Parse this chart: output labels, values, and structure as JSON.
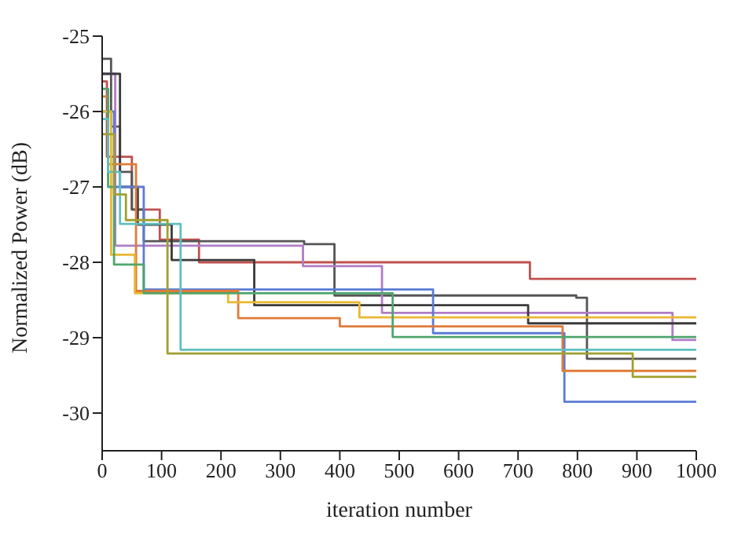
{
  "chart_data": {
    "type": "step",
    "xlabel": "iteration number",
    "ylabel": "Normalized Power (dB)",
    "xlim": [
      0,
      1000
    ],
    "xticks": [
      0,
      100,
      200,
      300,
      400,
      500,
      600,
      700,
      800,
      900,
      1000
    ],
    "ylim": [
      -30.5,
      -25
    ],
    "yticks": [
      -30,
      -29,
      -28,
      -27,
      -26,
      -25
    ],
    "grid": false,
    "legend": false,
    "marker": "none",
    "line_style": "solid",
    "series": [
      {
        "color": "#c0504d",
        "x": [
          0,
          8,
          50,
          97,
          163,
          720,
          1000
        ],
        "values": [
          -25.6,
          -26.6,
          -27.3,
          -27.7,
          -28.0,
          -28.22,
          -28.22
        ]
      },
      {
        "color": "#555555",
        "x": [
          0,
          15,
          30,
          50,
          70,
          340,
          391,
          798,
          816,
          1000
        ],
        "values": [
          -25.3,
          -26.2,
          -26.8,
          -27.3,
          -27.72,
          -27.76,
          -28.44,
          -28.47,
          -29.28,
          -29.28
        ]
      },
      {
        "color": "#b07cc6",
        "x": [
          0,
          22,
          338,
          471,
          960,
          1000
        ],
        "values": [
          -25.5,
          -27.78,
          -28.05,
          -28.67,
          -29.03,
          -29.03
        ]
      },
      {
        "color": "#3a3a3a",
        "x": [
          0,
          30,
          60,
          117,
          256,
          717,
          1000
        ],
        "values": [
          -25.5,
          -27.0,
          -27.5,
          -27.97,
          -28.57,
          -28.81,
          -28.81
        ]
      },
      {
        "color": "#5b7bd5",
        "x": [
          0,
          20,
          70,
          557,
          778,
          1000
        ],
        "values": [
          -26.0,
          -27.0,
          -28.36,
          -28.94,
          -29.85,
          -29.85
        ]
      },
      {
        "color": "#e07b39",
        "x": [
          0,
          10,
          57,
          229,
          400,
          775,
          1000
        ],
        "values": [
          -25.8,
          -26.7,
          -28.38,
          -28.74,
          -28.85,
          -29.44,
          -29.44
        ]
      },
      {
        "color": "#e8b830",
        "x": [
          0,
          15,
          55,
          212,
          433,
          1000
        ],
        "values": [
          -26.0,
          -27.9,
          -28.41,
          -28.53,
          -28.73,
          -28.73
        ]
      },
      {
        "color": "#4fa66d",
        "x": [
          0,
          10,
          20,
          70,
          489,
          1000
        ],
        "values": [
          -25.7,
          -27.0,
          -28.03,
          -28.41,
          -28.99,
          -28.99
        ]
      },
      {
        "color": "#5fc0c0",
        "x": [
          0,
          10,
          30,
          132,
          1000
        ],
        "values": [
          -26.1,
          -26.8,
          -27.49,
          -29.16,
          -29.16
        ]
      },
      {
        "color": "#a0a030",
        "x": [
          0,
          20,
          40,
          110,
          893,
          1000
        ],
        "values": [
          -26.3,
          -27.1,
          -27.44,
          -29.21,
          -29.52,
          -29.52
        ]
      }
    ]
  }
}
